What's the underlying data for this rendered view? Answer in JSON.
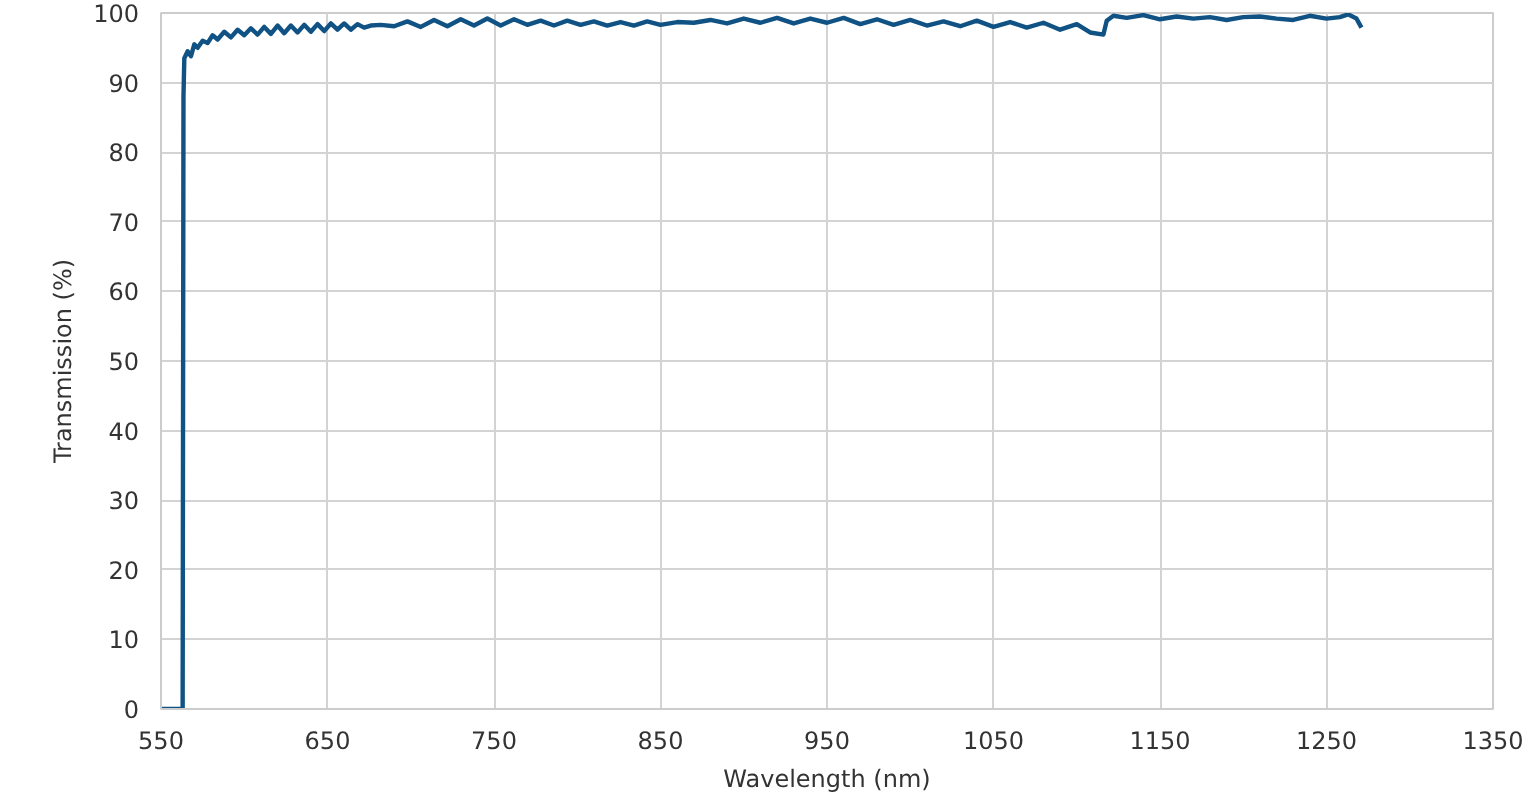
{
  "chart_data": {
    "type": "line",
    "xlabel": "Wavelength (nm)",
    "ylabel": "Transmission (%)",
    "x": [
      550,
      562,
      563,
      563.5,
      564,
      566,
      568,
      570,
      572,
      575,
      578,
      581,
      584,
      588,
      592,
      596,
      600,
      604,
      608,
      612,
      616,
      620,
      624,
      628,
      632,
      636,
      640,
      644,
      648,
      652,
      656,
      660,
      664,
      668,
      672,
      676,
      682,
      690,
      698,
      706,
      714,
      722,
      730,
      738,
      746,
      754,
      762,
      770,
      778,
      786,
      794,
      802,
      810,
      818,
      826,
      834,
      842,
      850,
      860,
      870,
      880,
      890,
      900,
      910,
      920,
      930,
      940,
      950,
      960,
      970,
      980,
      990,
      1000,
      1010,
      1020,
      1030,
      1040,
      1050,
      1060,
      1070,
      1080,
      1090,
      1100,
      1108,
      1116,
      1118,
      1122,
      1130,
      1140,
      1150,
      1160,
      1170,
      1180,
      1190,
      1200,
      1210,
      1220,
      1230,
      1240,
      1250,
      1258,
      1263,
      1268,
      1271
    ],
    "series": [
      {
        "color": "#0f5283",
        "values": [
          0,
          0,
          0,
          88,
          93.5,
          94.5,
          93.8,
          95.5,
          95,
          96,
          95.7,
          96.8,
          96.2,
          97.3,
          96.5,
          97.6,
          96.8,
          97.8,
          96.9,
          98,
          97,
          98.2,
          97.1,
          98.2,
          97.2,
          98.3,
          97.3,
          98.4,
          97.4,
          98.5,
          97.6,
          98.5,
          97.6,
          98.4,
          97.9,
          98.2,
          98.3,
          98.1,
          98.8,
          98,
          99,
          98.1,
          99.1,
          98.2,
          99.2,
          98.2,
          99.1,
          98.3,
          98.9,
          98.2,
          98.9,
          98.3,
          98.8,
          98.2,
          98.7,
          98.2,
          98.8,
          98.3,
          98.7,
          98.6,
          99,
          98.5,
          99.2,
          98.6,
          99.3,
          98.5,
          99.2,
          98.6,
          99.3,
          98.4,
          99.1,
          98.3,
          99,
          98.2,
          98.8,
          98.1,
          98.9,
          98,
          98.7,
          97.9,
          98.6,
          97.6,
          98.4,
          97.2,
          96.9,
          98.9,
          99.6,
          99.3,
          99.7,
          99.1,
          99.5,
          99.2,
          99.4,
          99,
          99.4,
          99.5,
          99.2,
          99,
          99.6,
          99.2,
          99.4,
          99.8,
          99.2,
          97.9
        ]
      }
    ],
    "xlim": [
      550,
      1350
    ],
    "ylim": [
      0,
      100
    ],
    "xticks": [
      550,
      650,
      750,
      850,
      950,
      1050,
      1150,
      1250,
      1350
    ],
    "yticks": [
      0,
      10,
      20,
      30,
      40,
      50,
      60,
      70,
      80,
      90,
      100
    ],
    "grid": true
  }
}
